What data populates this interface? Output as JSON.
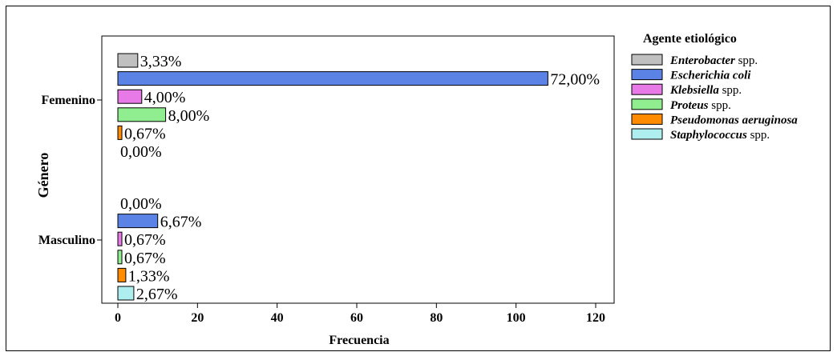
{
  "chart_data": {
    "type": "bar",
    "orientation": "horizontal",
    "xlabel": "Frecuencia",
    "ylabel": "Género",
    "xlim": [
      0,
      120
    ],
    "x_ticks": [
      0,
      20,
      40,
      60,
      80,
      100,
      120
    ],
    "x_tick_labels": [
      "0",
      "20",
      "40",
      "60",
      "80",
      "100",
      "120"
    ],
    "grid": false,
    "categories": [
      "Femenino",
      "Masculino"
    ],
    "legend": {
      "title": "Agente etiológico",
      "placement": "right",
      "entries": [
        {
          "italic": "Enterobacter",
          "rest": " spp."
        },
        {
          "italic": "Escherichia coli",
          "rest": ""
        },
        {
          "italic": "Klebsiella",
          "rest": " spp."
        },
        {
          "italic": "Proteus",
          "rest": " spp."
        },
        {
          "italic": "Pseudomonas aeruginosa",
          "rest": ""
        },
        {
          "italic": "Staphylococcus",
          "rest": " spp."
        }
      ]
    },
    "series": [
      {
        "name": "Enterobacter spp.",
        "color": "#c0c0c0",
        "values": [
          5,
          0
        ],
        "labels": [
          "3,33%",
          "0,00%"
        ]
      },
      {
        "name": "Escherichia coli",
        "color": "#5b83e6",
        "values": [
          108,
          10
        ],
        "labels": [
          "72,00%",
          "6,67%"
        ]
      },
      {
        "name": "Klebsiella spp.",
        "color": "#e87ae8",
        "values": [
          6,
          1
        ],
        "labels": [
          "4,00%",
          "0,67%"
        ]
      },
      {
        "name": "Proteus spp.",
        "color": "#90ee90",
        "values": [
          12,
          1
        ],
        "labels": [
          "8,00%",
          "0,67%"
        ]
      },
      {
        "name": "Pseudomonas aeruginosa",
        "color": "#ff8c00",
        "values": [
          1,
          2
        ],
        "labels": [
          "0,67%",
          "1,33%"
        ]
      },
      {
        "name": "Staphylococcus spp.",
        "color": "#afeeee",
        "values": [
          0,
          4
        ],
        "labels": [
          "0,00%",
          "2,67%"
        ]
      }
    ]
  }
}
